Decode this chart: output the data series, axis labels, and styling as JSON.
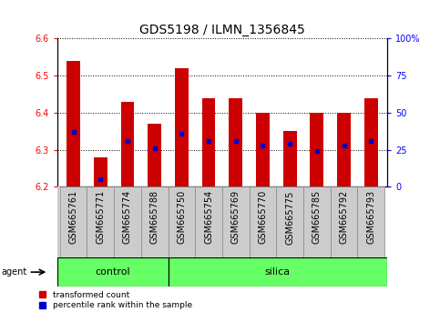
{
  "title": "GDS5198 / ILMN_1356845",
  "samples": [
    "GSM665761",
    "GSM665771",
    "GSM665774",
    "GSM665788",
    "GSM665750",
    "GSM665754",
    "GSM665769",
    "GSM665770",
    "GSM665775",
    "GSM665785",
    "GSM665792",
    "GSM665793"
  ],
  "groups": [
    "control",
    "control",
    "control",
    "control",
    "silica",
    "silica",
    "silica",
    "silica",
    "silica",
    "silica",
    "silica",
    "silica"
  ],
  "transformed_count": [
    6.54,
    6.28,
    6.43,
    6.37,
    6.52,
    6.44,
    6.44,
    6.4,
    6.35,
    6.4,
    6.4,
    6.44
  ],
  "percentile_rank": [
    37,
    5,
    31,
    26,
    36,
    31,
    31,
    28,
    29,
    24,
    28,
    31
  ],
  "ymin": 6.2,
  "ymax": 6.6,
  "bar_color": "#cc0000",
  "dot_color": "#0000cc",
  "group_color": "#66ff66",
  "bg_color": "#cccccc",
  "title_fontsize": 10,
  "tick_fontsize": 7,
  "label_fontsize": 8,
  "bar_width": 0.5,
  "yticks_left": [
    6.2,
    6.3,
    6.4,
    6.5,
    6.6
  ],
  "yticks_right": [
    0,
    25,
    50,
    75,
    100
  ],
  "ytick_labels_right": [
    "0",
    "25",
    "50",
    "75",
    "100%"
  ],
  "n_control": 4,
  "n_silica": 8
}
